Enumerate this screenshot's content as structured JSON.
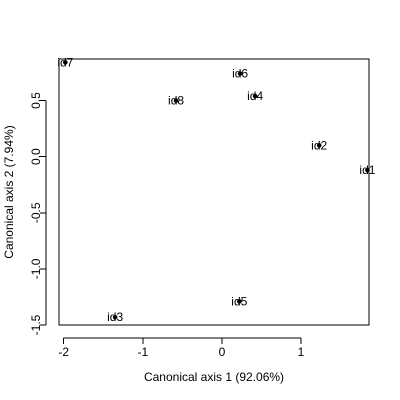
{
  "chart_data": {
    "type": "scatter",
    "xlabel": "Canonical axis 1 (92.06%)",
    "ylabel": "Canonical axis 2 (7.94%)",
    "xlim": [
      -2.06,
      1.86
    ],
    "ylim": [
      -1.5,
      0.87
    ],
    "xticks": [
      -2,
      -1,
      0,
      1
    ],
    "xtick_labels": [
      "-2",
      "-1",
      "0",
      "1"
    ],
    "yticks": [
      -1.5,
      -1.0,
      -0.5,
      0.0,
      0.5
    ],
    "ytick_labels": [
      "-1.5",
      "-1.0",
      "-0.5",
      "0.0",
      "0.5"
    ],
    "grid": false,
    "points": [
      {
        "label": "id1",
        "x": 1.84,
        "y": -0.12
      },
      {
        "label": "id2",
        "x": 1.23,
        "y": 0.1
      },
      {
        "label": "id3",
        "x": -1.35,
        "y": -1.43
      },
      {
        "label": "id4",
        "x": 0.42,
        "y": 0.54
      },
      {
        "label": "id5",
        "x": 0.22,
        "y": -1.29
      },
      {
        "label": "id6",
        "x": 0.23,
        "y": 0.74
      },
      {
        "label": "id7",
        "x": -1.98,
        "y": 0.84
      },
      {
        "label": "id8",
        "x": -0.58,
        "y": 0.5
      }
    ]
  }
}
